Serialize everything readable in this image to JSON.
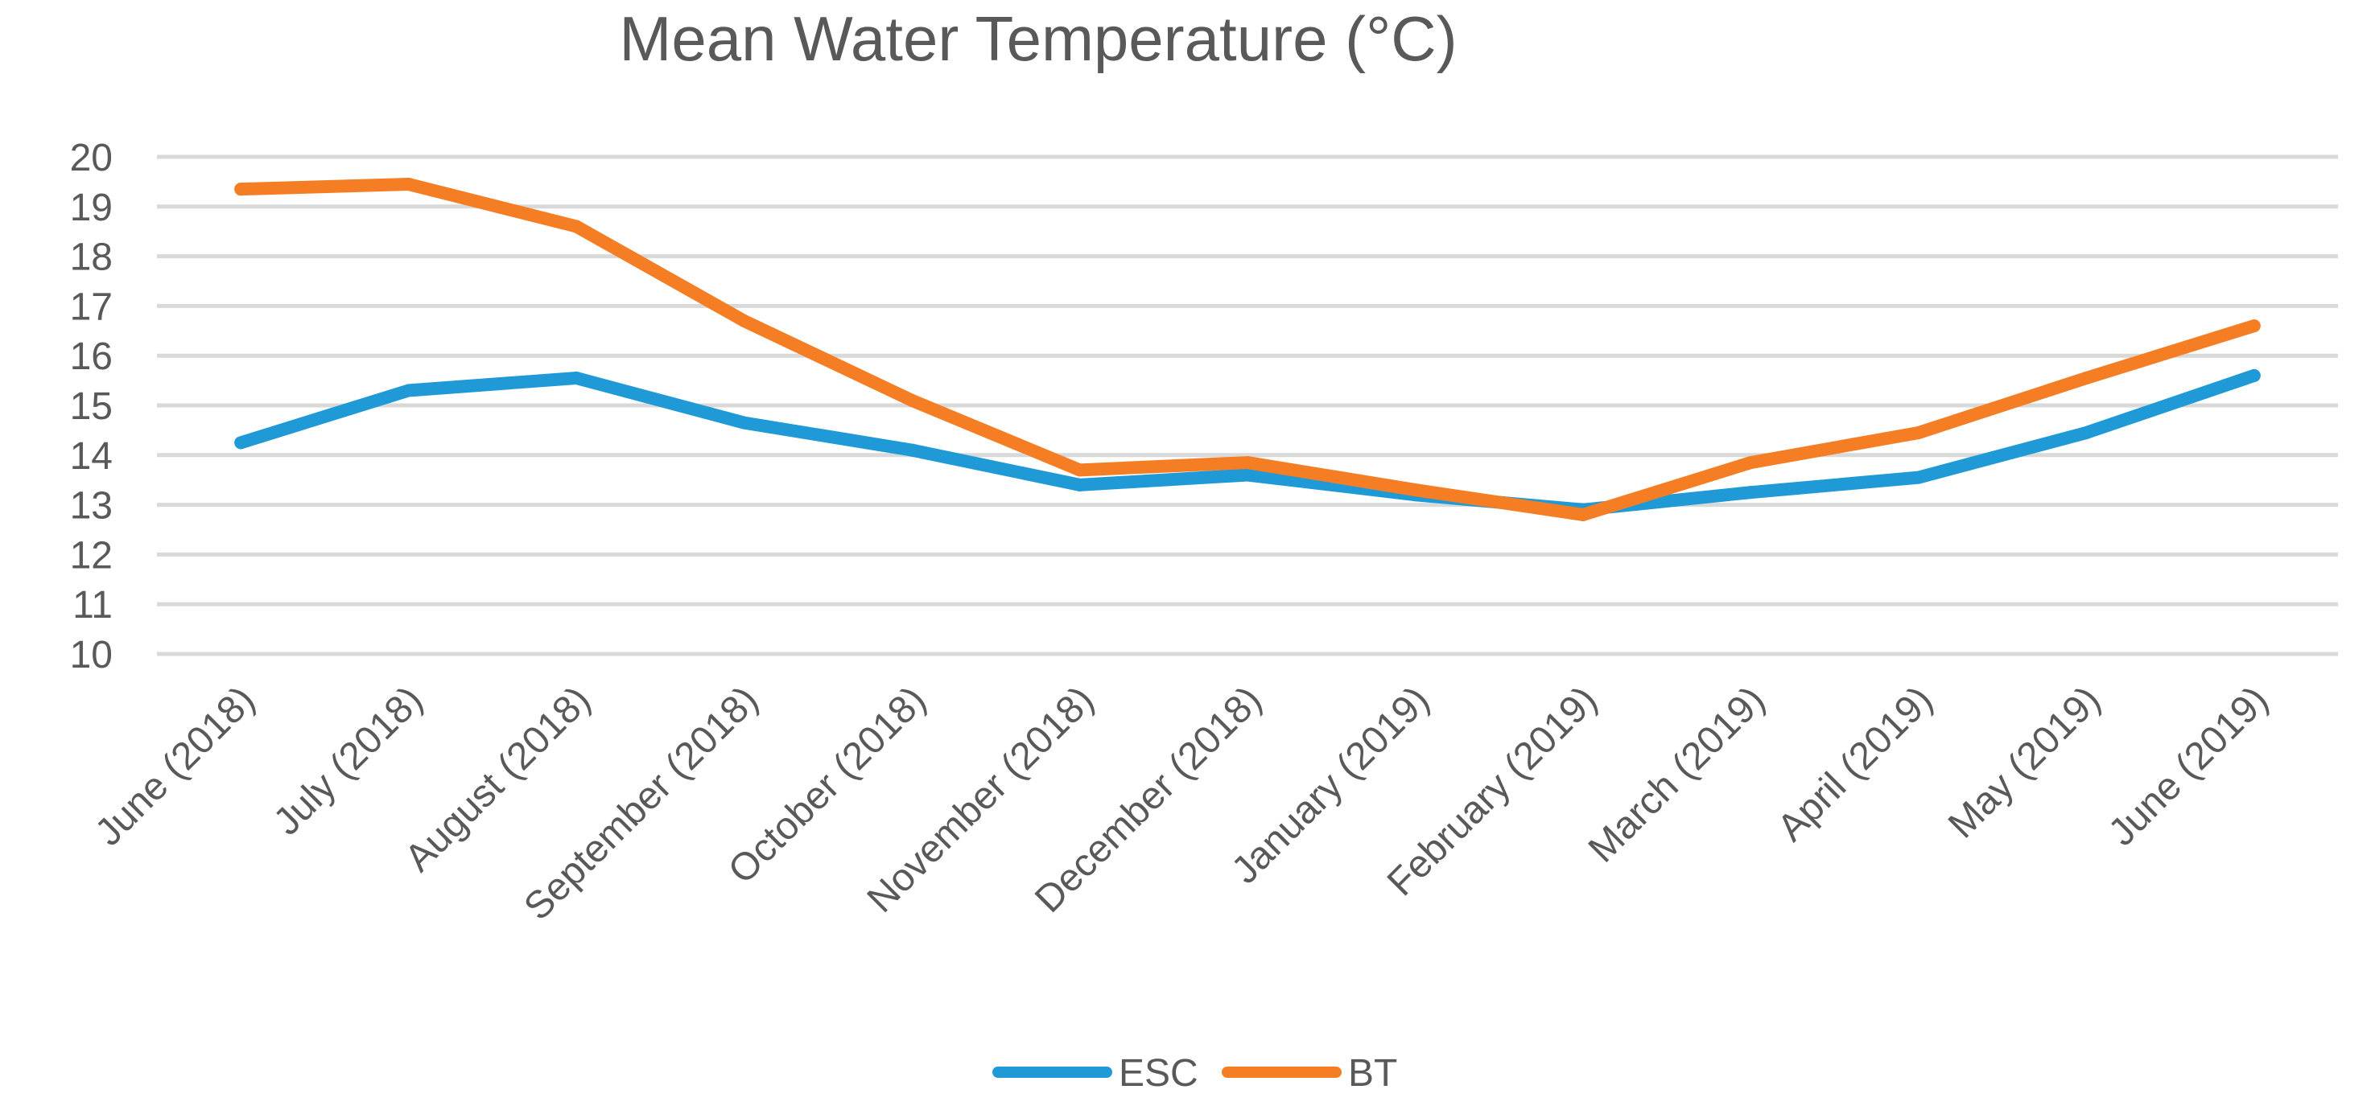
{
  "chart_data": {
    "type": "line",
    "title": "Mean Water Temperature (°C)",
    "xlabel": "",
    "ylabel": "",
    "ylim": [
      10,
      20
    ],
    "yticks": [
      "10",
      "11",
      "12",
      "13",
      "14",
      "15",
      "16",
      "17",
      "18",
      "19",
      "20"
    ],
    "grid": true,
    "legend_position": "bottom",
    "categories": [
      "June (2018)",
      "July (2018)",
      "August (2018)",
      "September (2018)",
      "October (2018)",
      "November (2018)",
      "December (2018)",
      "January (2019)",
      "February (2019)",
      "March (2019)",
      "April (2019)",
      "May (2019)",
      "June (2019)"
    ],
    "series": [
      {
        "name": "ESC",
        "color": "#1f9ad6",
        "values": [
          14.25,
          15.3,
          15.55,
          14.65,
          14.1,
          13.4,
          13.6,
          13.2,
          12.9,
          13.25,
          13.55,
          14.45,
          15.6
        ]
      },
      {
        "name": "BT",
        "color": "#f57e25",
        "values": [
          19.35,
          19.45,
          18.6,
          16.7,
          15.1,
          13.7,
          13.85,
          13.3,
          12.8,
          13.85,
          14.45,
          15.55,
          16.6
        ]
      }
    ]
  }
}
